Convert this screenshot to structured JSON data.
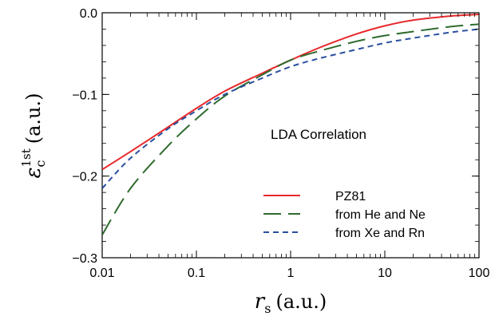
{
  "chart_data": {
    "type": "line",
    "xscale": "log",
    "xlim": [
      0.01,
      100
    ],
    "ylim": [
      -0.3,
      0.0
    ],
    "xticks": [
      0.01,
      0.1,
      1,
      10,
      100
    ],
    "xtick_labels": [
      "0.01",
      "0.1",
      "1",
      "10",
      "100"
    ],
    "yticks": [
      -0.3,
      -0.2,
      -0.1,
      0.0
    ],
    "ytick_labels": [
      "−0.3",
      "−0.2",
      "−0.1",
      "0.0"
    ],
    "xlabel": {
      "main": "r",
      "sub": "s",
      "unit": "(a.u.)"
    },
    "ylabel": {
      "main": "ε",
      "sub": "c",
      "sup": "1st",
      "unit": "(a.u.)"
    },
    "annotation": "LDA Correlation",
    "grid": false,
    "legend_position": "lower-right",
    "series": [
      {
        "name": "PZ81",
        "color": "#e8282b",
        "dash": "solid",
        "x": [
          0.01,
          0.02,
          0.05,
          0.1,
          0.2,
          0.5,
          1,
          2,
          5,
          10,
          20,
          50,
          100
        ],
        "y": [
          -0.192,
          -0.17,
          -0.14,
          -0.117,
          -0.096,
          -0.074,
          -0.058,
          -0.043,
          -0.026,
          -0.016,
          -0.009,
          -0.004,
          -0.002
        ]
      },
      {
        "name": "from He and Ne",
        "color": "#2e6b2e",
        "dash": "long-dash",
        "x": [
          0.01,
          0.02,
          0.05,
          0.1,
          0.2,
          0.5,
          1,
          2,
          5,
          10,
          20,
          50,
          100
        ],
        "y": [
          -0.272,
          -0.215,
          -0.163,
          -0.13,
          -0.102,
          -0.076,
          -0.058,
          -0.047,
          -0.035,
          -0.028,
          -0.023,
          -0.017,
          -0.014
        ]
      },
      {
        "name": "from Xe and Rn",
        "color": "#2a4f9e",
        "dash": "short-dash",
        "x": [
          0.01,
          0.02,
          0.05,
          0.1,
          0.2,
          0.5,
          1,
          2,
          5,
          10,
          20,
          50,
          100
        ],
        "y": [
          -0.215,
          -0.178,
          -0.142,
          -0.12,
          -0.1,
          -0.08,
          -0.066,
          -0.056,
          -0.045,
          -0.037,
          -0.031,
          -0.024,
          -0.02
        ]
      }
    ]
  }
}
